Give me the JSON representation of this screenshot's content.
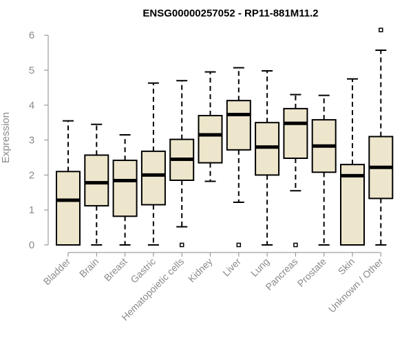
{
  "chart_data": {
    "type": "boxplot",
    "title": "ENSG00000257052 - RP11-881M11.2",
    "xlabel": "",
    "ylabel": "Expression",
    "ylim": [
      0,
      6.2
    ],
    "yticks": [
      0,
      1,
      2,
      3,
      4,
      5,
      6
    ],
    "box_color": "#ede6cc",
    "categories": [
      "Bladder",
      "Brain",
      "Breast",
      "Gastric",
      "Hematopoietic cells",
      "Kidney",
      "Liver",
      "Lung",
      "Pancreas",
      "Prostate",
      "Skin",
      "Unknown / Other"
    ],
    "series": [
      {
        "name": "Bladder",
        "min": 0,
        "q1": 0,
        "median": 1.28,
        "q3": 2.1,
        "max": 3.55,
        "outliers": []
      },
      {
        "name": "Brain",
        "min": 0,
        "q1": 1.12,
        "median": 1.78,
        "q3": 2.57,
        "max": 3.45,
        "outliers": []
      },
      {
        "name": "Breast",
        "min": 0,
        "q1": 0.82,
        "median": 1.84,
        "q3": 2.42,
        "max": 3.15,
        "outliers": []
      },
      {
        "name": "Gastric",
        "min": 0,
        "q1": 1.15,
        "median": 2.0,
        "q3": 2.68,
        "max": 4.63,
        "outliers": []
      },
      {
        "name": "Hematopoietic cells",
        "min": 0.52,
        "q1": 1.85,
        "median": 2.45,
        "q3": 3.02,
        "max": 4.7,
        "outliers": [
          0
        ]
      },
      {
        "name": "Kidney",
        "min": 1.82,
        "q1": 2.35,
        "median": 3.15,
        "q3": 3.7,
        "max": 4.95,
        "outliers": []
      },
      {
        "name": "Liver",
        "min": 1.22,
        "q1": 2.72,
        "median": 3.73,
        "q3": 4.13,
        "max": 5.07,
        "outliers": [
          0
        ]
      },
      {
        "name": "Lung",
        "min": 0,
        "q1": 2.0,
        "median": 2.8,
        "q3": 3.5,
        "max": 4.98,
        "outliers": []
      },
      {
        "name": "Pancreas",
        "min": 1.55,
        "q1": 2.48,
        "median": 3.48,
        "q3": 3.9,
        "max": 4.3,
        "outliers": [
          0
        ]
      },
      {
        "name": "Prostate",
        "min": 0,
        "q1": 2.08,
        "median": 2.83,
        "q3": 3.58,
        "max": 4.28,
        "outliers": []
      },
      {
        "name": "Skin",
        "min": 0,
        "q1": 0,
        "median": 1.98,
        "q3": 2.3,
        "max": 4.75,
        "outliers": []
      },
      {
        "name": "Unknown / Other",
        "min": 0,
        "q1": 1.33,
        "median": 2.22,
        "q3": 3.1,
        "max": 5.57,
        "outliers": [
          6.15
        ]
      }
    ]
  }
}
